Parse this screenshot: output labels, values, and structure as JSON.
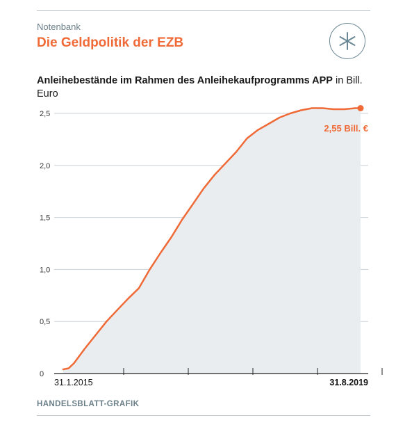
{
  "header": {
    "kicker": "Notenbank",
    "headline": "Die Geldpolitik der EZB",
    "badge_icon": "asterisk-icon"
  },
  "chart_title": {
    "bold": "Anleihebestände im Rahmen des Anleihekaufprogramms APP",
    "unit": " in Bill. Euro"
  },
  "source": "HANDELSBLATT-GRAFIK",
  "colors": {
    "line": "#ef6a36",
    "area": "#e9edf0",
    "accent": "#ef6a36",
    "text_muted": "#6a7f88"
  },
  "chart_data": {
    "type": "area",
    "title": "Anleihebestände im Rahmen des Anleihekaufprogramms APP in Bill. Euro",
    "x_start_label": "31.1.2015",
    "x_end_label": "31.8.2019",
    "ylim": [
      0,
      2.55
    ],
    "y_ticks": [
      "0",
      "0,5",
      "1,0",
      "1,5",
      "2,0",
      "2,5"
    ],
    "y_tick_values": [
      0,
      0.5,
      1.0,
      1.5,
      2.0,
      2.5
    ],
    "grid": true,
    "x_ticks_count": 5,
    "annotation": "2,55 Bill. €",
    "series": [
      {
        "x": [
          "2015-01",
          "2015-02",
          "2015-03",
          "2015-05",
          "2015-07",
          "2015-09",
          "2015-11",
          "2016-01",
          "2016-03",
          "2016-05",
          "2016-07",
          "2016-09",
          "2016-11",
          "2017-01",
          "2017-03",
          "2017-05",
          "2017-07",
          "2017-09",
          "2017-11",
          "2018-01",
          "2018-03",
          "2018-05",
          "2018-07",
          "2018-09",
          "2018-11",
          "2019-01",
          "2019-03",
          "2019-05",
          "2019-07",
          "2019-08"
        ],
        "y": [
          0.04,
          0.05,
          0.1,
          0.24,
          0.37,
          0.5,
          0.61,
          0.72,
          0.82,
          1.0,
          1.16,
          1.31,
          1.48,
          1.63,
          1.78,
          1.91,
          2.02,
          2.13,
          2.26,
          2.34,
          2.4,
          2.46,
          2.5,
          2.53,
          2.55,
          2.55,
          2.54,
          2.54,
          2.55,
          2.55
        ]
      }
    ]
  }
}
